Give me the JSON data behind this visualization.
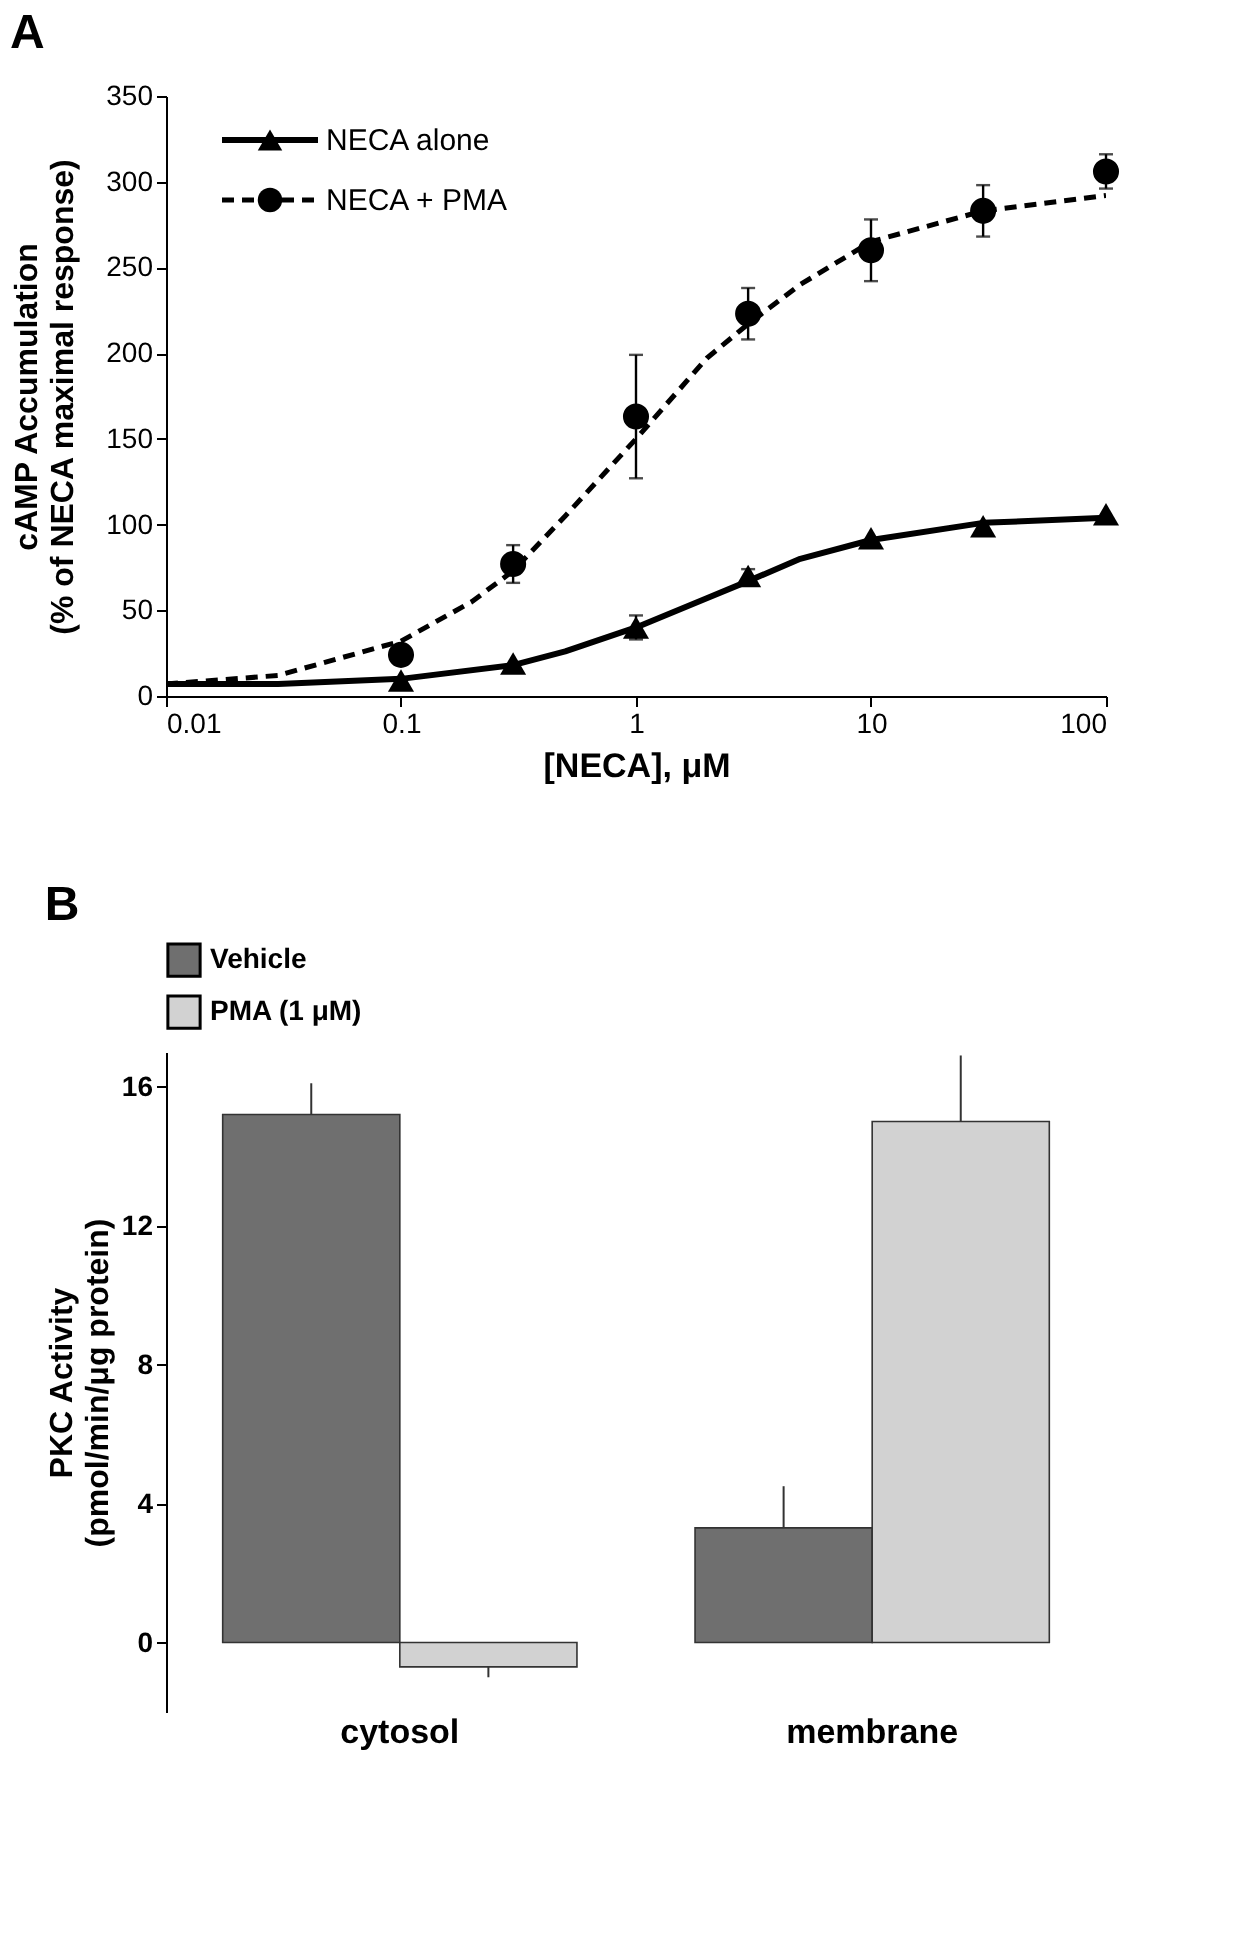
{
  "chart_data": [
    {
      "type": "line",
      "title": "A",
      "xlabel": "[NECA], μM",
      "ylabel": [
        "cAMP Accumulation",
        "(% of NECA maximal response)"
      ],
      "log": "x",
      "xlim": [
        0.01,
        100
      ],
      "xticks": [
        0.01,
        0.1,
        1,
        10,
        100
      ],
      "ylim": [
        0,
        350
      ],
      "yticks": [
        0,
        50,
        100,
        150,
        200,
        250,
        300,
        350
      ],
      "grid": false,
      "legend": "top left",
      "series": [
        {
          "name": "NECA alone",
          "type": "scatter",
          "marker": "triangle",
          "color": "#000000",
          "x": [
            0.1,
            0.3,
            1,
            3,
            10,
            30,
            100
          ],
          "values": [
            9,
            19,
            40,
            70,
            92,
            99,
            106
          ],
          "errors": [
            null,
            null,
            7,
            4,
            null,
            null,
            null
          ]
        },
        {
          "name": "NECA + PMA",
          "type": "scatter",
          "marker": "circle",
          "color": "#000000",
          "x": [
            0.1,
            0.3,
            1,
            3,
            10,
            30,
            100
          ],
          "values": [
            24,
            77,
            163,
            223,
            260,
            283,
            306
          ],
          "errors": [
            null,
            11,
            36,
            15,
            18,
            15,
            10
          ]
        },
        {
          "type": "line",
          "line_style": "solid",
          "color": "#000000",
          "x": [
            0.01,
            0.03,
            0.1,
            0.3,
            0.5,
            1,
            2,
            3,
            5,
            10,
            30,
            100
          ],
          "values": [
            7,
            7,
            10,
            18,
            26,
            40,
            57,
            67,
            80,
            91,
            101,
            104
          ]
        },
        {
          "type": "line",
          "line_style": "dashed",
          "color": "#000000",
          "x": [
            0.01,
            0.03,
            0.1,
            0.2,
            0.3,
            0.5,
            1,
            2,
            3,
            5,
            10,
            30,
            100
          ],
          "values": [
            7,
            12,
            32,
            55,
            73,
            105,
            150,
            197,
            217,
            240,
            265,
            283,
            292
          ]
        }
      ]
    },
    {
      "type": "bar",
      "title": "B",
      "ylabel": [
        "PKC Activity",
        "(pmol/min/μg protein)"
      ],
      "categories": [
        "cytosol",
        "membrane"
      ],
      "ylim": [
        -2,
        17
      ],
      "yticks": [
        0,
        4,
        8,
        12,
        16
      ],
      "grid": false,
      "legend": "top left",
      "series": [
        {
          "name": "Vehicle",
          "color": "#6f6f6f",
          "values": [
            15.2,
            3.3
          ],
          "errors": [
            [
              15.2,
              16.1
            ],
            [
              3.3,
              4.5
            ]
          ]
        },
        {
          "name": "PMA (1 μM)",
          "color": "#d2d2d2",
          "values": [
            -0.7,
            15.0
          ],
          "errors": [
            [
              -1.0,
              -0.7
            ],
            [
              15.0,
              16.9
            ]
          ]
        }
      ]
    }
  ]
}
